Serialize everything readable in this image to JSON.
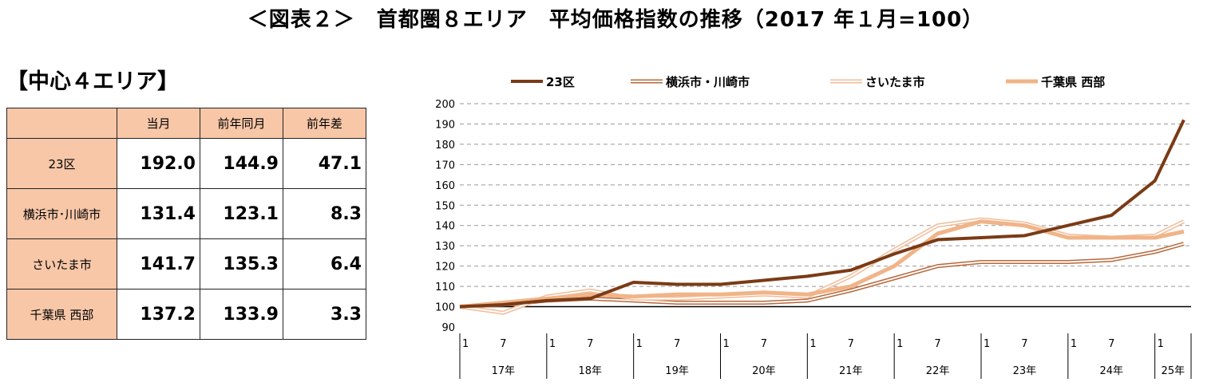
{
  "title": "＜図表２＞　首都圏８エリア　平均価格指数の推移（2017 年１月=100）",
  "section_title": "【中心４エリア】",
  "table": {
    "headers": [
      "",
      "当月",
      "前年同月",
      "前年差"
    ],
    "rows": [
      {
        "label": "23区",
        "current": "192.0",
        "prev_year": "144.9",
        "diff": "47.1"
      },
      {
        "label": "横浜市･川崎市",
        "current": "131.4",
        "prev_year": "123.1",
        "diff": "8.3"
      },
      {
        "label": "さいたま市",
        "current": "141.7",
        "prev_year": "135.3",
        "diff": "6.4"
      },
      {
        "label": "千葉県 西部",
        "current": "137.2",
        "prev_year": "133.9",
        "diff": "3.3"
      }
    ]
  },
  "colors": {
    "table_header_bg": "#f7c7a8",
    "series_23ku": "#7a3b16",
    "series_yokohama": "#b8683a",
    "series_saitama": "#f2bc98",
    "series_chiba": "#f0b488"
  },
  "chart_data": {
    "type": "line",
    "ylim": [
      90,
      200
    ],
    "yticks": [
      90,
      100,
      110,
      120,
      130,
      140,
      150,
      160,
      170,
      180,
      190,
      200
    ],
    "grid": "dashed horizontal",
    "baseline": 100,
    "legend_position": "top",
    "months": [
      "2017-01",
      "2017-07",
      "2018-01",
      "2018-07",
      "2019-01",
      "2019-07",
      "2020-01",
      "2020-07",
      "2021-01",
      "2021-07",
      "2022-01",
      "2022-07",
      "2023-01",
      "2023-07",
      "2024-01",
      "2024-07",
      "2025-01",
      "2025-05"
    ],
    "x_tick_labels": [
      {
        "month": "2017-01",
        "label": "1"
      },
      {
        "month": "2017-07",
        "label": "7"
      },
      {
        "month": "2018-01",
        "label": "1"
      },
      {
        "month": "2018-07",
        "label": "7"
      },
      {
        "month": "2019-01",
        "label": "1"
      },
      {
        "month": "2019-07",
        "label": "7"
      },
      {
        "month": "2020-01",
        "label": "1"
      },
      {
        "month": "2020-07",
        "label": "7"
      },
      {
        "month": "2021-01",
        "label": "1"
      },
      {
        "month": "2021-07",
        "label": "7"
      },
      {
        "month": "2022-01",
        "label": "1"
      },
      {
        "month": "2022-07",
        "label": "7"
      },
      {
        "month": "2023-01",
        "label": "1"
      },
      {
        "month": "2023-07",
        "label": "7"
      },
      {
        "month": "2024-01",
        "label": "1"
      },
      {
        "month": "2024-07",
        "label": "7"
      },
      {
        "month": "2025-01",
        "label": "1"
      }
    ],
    "year_labels": [
      "17年",
      "18年",
      "19年",
      "20年",
      "21年",
      "22年",
      "23年",
      "24年",
      "25年"
    ],
    "series": [
      {
        "name": "23区",
        "style": "thick-solid",
        "values": [
          100,
          101,
          103,
          104,
          112,
          111,
          111,
          113,
          115,
          118,
          126,
          133,
          134,
          135,
          140,
          145,
          162,
          192
        ]
      },
      {
        "name": "横浜市・川崎市",
        "style": "double-outline",
        "values": [
          100,
          101,
          103,
          104,
          103,
          102,
          102,
          102,
          103,
          108,
          114,
          120,
          122,
          122,
          122,
          123,
          127,
          131
        ]
      },
      {
        "name": "さいたま市",
        "style": "double-outline",
        "values": [
          100,
          97,
          105,
          108,
          104,
          104,
          105,
          106,
          105,
          115,
          128,
          140,
          143,
          141,
          135,
          134,
          135,
          142
        ]
      },
      {
        "name": "千葉県 西部",
        "style": "thick-solid",
        "values": [
          100,
          102,
          104,
          106,
          105,
          106,
          106,
          107,
          106,
          110,
          120,
          136,
          142,
          140,
          134,
          134,
          134,
          137
        ]
      }
    ]
  }
}
